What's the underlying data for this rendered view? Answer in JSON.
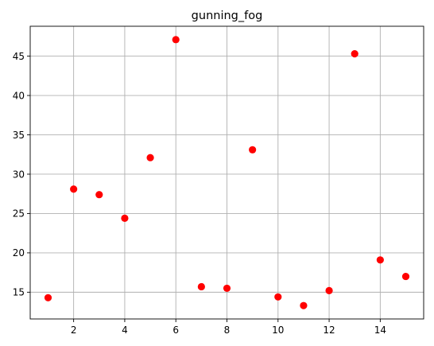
{
  "chart_data": {
    "type": "scatter",
    "title": "gunning_fog",
    "xlabel": "",
    "ylabel": "",
    "x": [
      1,
      2,
      3,
      4,
      5,
      6,
      7,
      8,
      9,
      10,
      11,
      12,
      13,
      14,
      15
    ],
    "y": [
      14.3,
      28.1,
      27.4,
      24.4,
      32.1,
      47.1,
      15.7,
      15.5,
      33.1,
      14.4,
      13.3,
      15.2,
      45.3,
      19.1,
      17.0
    ],
    "xlim": [
      0.3,
      15.7
    ],
    "ylim": [
      11.6,
      48.8
    ],
    "xticks": [
      2,
      4,
      6,
      8,
      10,
      12,
      14
    ],
    "yticks": [
      15,
      20,
      25,
      30,
      35,
      40,
      45
    ],
    "grid": true,
    "marker_color": "#ff0000"
  }
}
